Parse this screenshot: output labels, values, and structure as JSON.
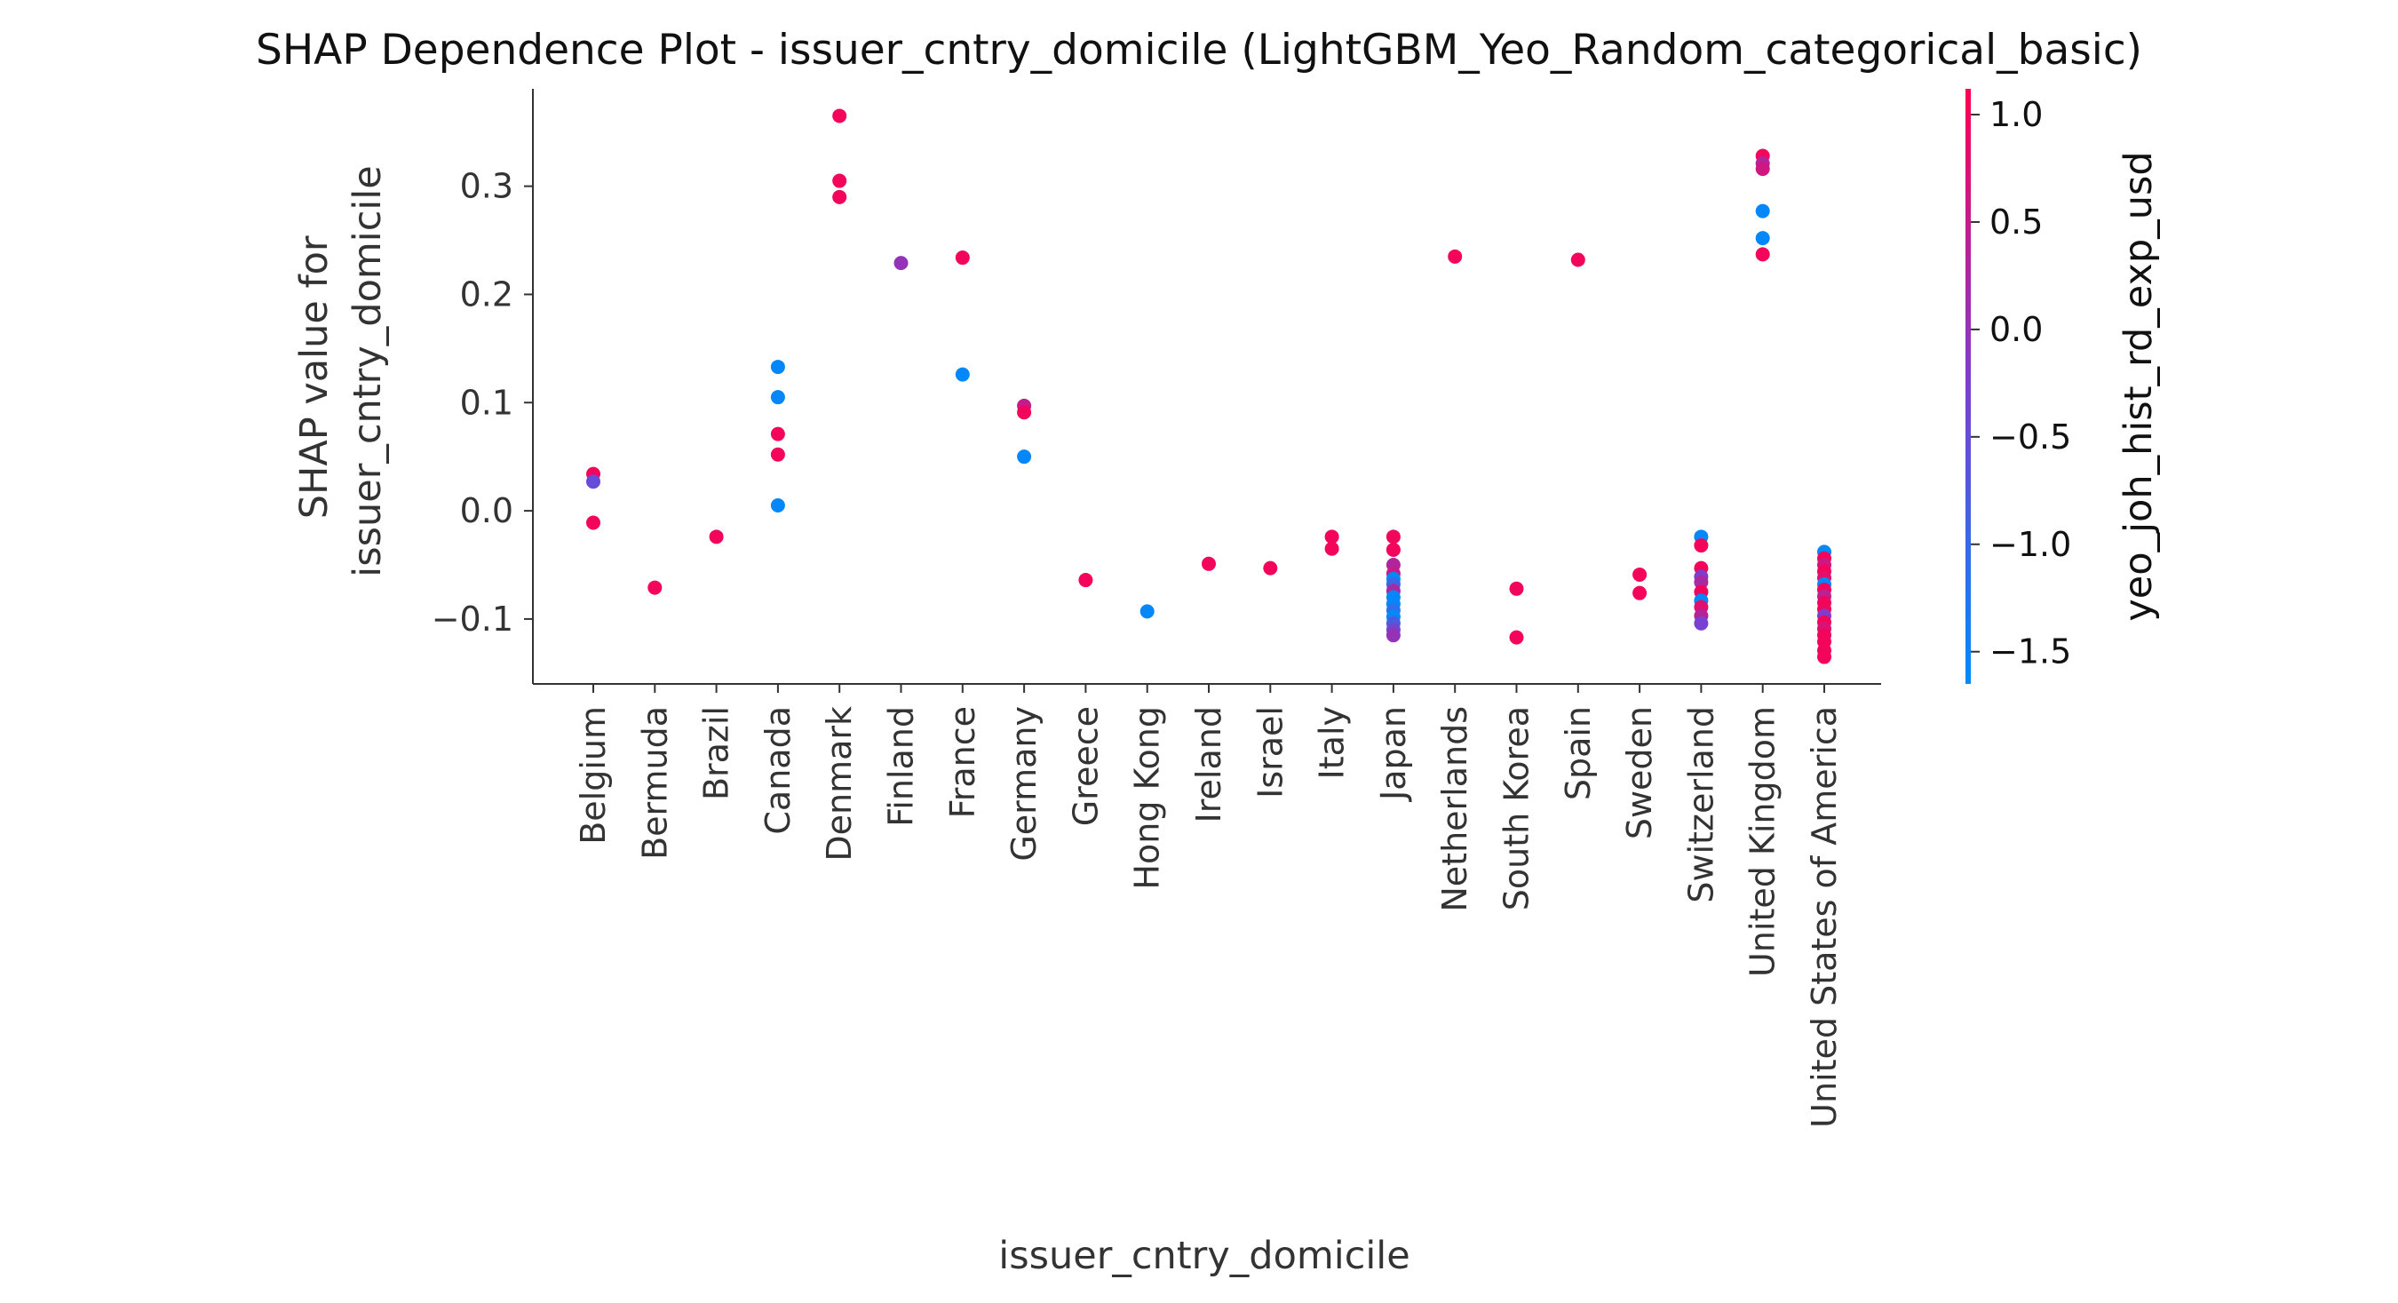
{
  "chart_data": {
    "type": "scatter",
    "title": "SHAP Dependence Plot - issuer_cntry_domicile (LightGBM_Yeo_Random_categorical_basic)",
    "xlabel": "issuer_cntry_domicile",
    "ylabel_lines": [
      "SHAP value for",
      "issuer_cntry_domicile"
    ],
    "categories": [
      "Belgium",
      "Bermuda",
      "Brazil",
      "Canada",
      "Denmark",
      "Finland",
      "France",
      "Germany",
      "Greece",
      "Hong Kong",
      "Ireland",
      "Israel",
      "Italy",
      "Japan",
      "Netherlands",
      "South Korea",
      "Spain",
      "Sweden",
      "Switzerland",
      "United Kingdom",
      "United States of America"
    ],
    "ylim": [
      -0.16,
      0.39
    ],
    "yticks": [
      -0.1,
      0.0,
      0.1,
      0.2,
      0.3
    ],
    "ytick_labels": [
      "−0.1",
      "0.0",
      "0.1",
      "0.2",
      "0.3"
    ],
    "grid": false,
    "colorbar": {
      "label": "yeo_joh_hist_rd_exp_usd",
      "range": [
        -1.65,
        1.12
      ],
      "ticks": [
        1.0,
        0.5,
        0.0,
        -0.5,
        -1.0,
        -1.5
      ],
      "tick_labels": [
        "1.0",
        "0.5",
        "0.0",
        "−0.5",
        "−1.0",
        "−1.5"
      ],
      "colors": [
        "#008bfb",
        "#7b3fd0",
        "#ff0051"
      ]
    },
    "points": [
      {
        "cat": "Belgium",
        "y": 0.034,
        "c": 1.0
      },
      {
        "cat": "Belgium",
        "y": 0.027,
        "c": -0.5
      },
      {
        "cat": "Belgium",
        "y": -0.011,
        "c": 1.0
      },
      {
        "cat": "Bermuda",
        "y": -0.071,
        "c": 1.0
      },
      {
        "cat": "Brazil",
        "y": -0.024,
        "c": 1.0
      },
      {
        "cat": "Canada",
        "y": 0.133,
        "c": -1.6
      },
      {
        "cat": "Canada",
        "y": 0.105,
        "c": -1.6
      },
      {
        "cat": "Canada",
        "y": 0.071,
        "c": 1.0
      },
      {
        "cat": "Canada",
        "y": 0.052,
        "c": 1.0
      },
      {
        "cat": "Canada",
        "y": 0.005,
        "c": -1.6
      },
      {
        "cat": "Denmark",
        "y": 0.365,
        "c": 1.0
      },
      {
        "cat": "Denmark",
        "y": 0.305,
        "c": 1.0
      },
      {
        "cat": "Denmark",
        "y": 0.29,
        "c": 1.0
      },
      {
        "cat": "Finland",
        "y": 0.229,
        "c": 0.0
      },
      {
        "cat": "France",
        "y": 0.234,
        "c": 1.0
      },
      {
        "cat": "France",
        "y": 0.126,
        "c": -1.6
      },
      {
        "cat": "Germany",
        "y": 0.097,
        "c": 0.5
      },
      {
        "cat": "Germany",
        "y": 0.091,
        "c": 1.0
      },
      {
        "cat": "Germany",
        "y": 0.05,
        "c": -1.6
      },
      {
        "cat": "Greece",
        "y": -0.064,
        "c": 1.0
      },
      {
        "cat": "Hong Kong",
        "y": -0.093,
        "c": -1.6
      },
      {
        "cat": "Ireland",
        "y": -0.049,
        "c": 1.0
      },
      {
        "cat": "Israel",
        "y": -0.053,
        "c": 1.0
      },
      {
        "cat": "Italy",
        "y": -0.024,
        "c": 1.0
      },
      {
        "cat": "Italy",
        "y": -0.035,
        "c": 1.0
      },
      {
        "cat": "Japan",
        "y": -0.024,
        "c": 1.0
      },
      {
        "cat": "Japan",
        "y": -0.036,
        "c": 1.0
      },
      {
        "cat": "Japan",
        "y": -0.05,
        "c": 0.3
      },
      {
        "cat": "Japan",
        "y": -0.058,
        "c": 0.5
      },
      {
        "cat": "Japan",
        "y": -0.063,
        "c": -1.6
      },
      {
        "cat": "Japan",
        "y": -0.068,
        "c": -1.0
      },
      {
        "cat": "Japan",
        "y": -0.074,
        "c": 0.2
      },
      {
        "cat": "Japan",
        "y": -0.08,
        "c": -1.6
      },
      {
        "cat": "Japan",
        "y": -0.086,
        "c": -1.6
      },
      {
        "cat": "Japan",
        "y": -0.092,
        "c": -1.2
      },
      {
        "cat": "Japan",
        "y": -0.098,
        "c": -1.6
      },
      {
        "cat": "Japan",
        "y": -0.104,
        "c": -0.8
      },
      {
        "cat": "Japan",
        "y": -0.11,
        "c": -0.4
      },
      {
        "cat": "Japan",
        "y": -0.115,
        "c": 0.0
      },
      {
        "cat": "Netherlands",
        "y": 0.235,
        "c": 1.0
      },
      {
        "cat": "South Korea",
        "y": -0.072,
        "c": 1.0
      },
      {
        "cat": "South Korea",
        "y": -0.117,
        "c": 1.0
      },
      {
        "cat": "Spain",
        "y": 0.232,
        "c": 1.0
      },
      {
        "cat": "Sweden",
        "y": -0.059,
        "c": 1.0
      },
      {
        "cat": "Sweden",
        "y": -0.076,
        "c": 1.0
      },
      {
        "cat": "Switzerland",
        "y": -0.024,
        "c": -1.6
      },
      {
        "cat": "Switzerland",
        "y": -0.032,
        "c": 1.0
      },
      {
        "cat": "Switzerland",
        "y": -0.053,
        "c": 1.0
      },
      {
        "cat": "Switzerland",
        "y": -0.061,
        "c": -0.2
      },
      {
        "cat": "Switzerland",
        "y": -0.066,
        "c": 0.2
      },
      {
        "cat": "Switzerland",
        "y": -0.075,
        "c": 1.0
      },
      {
        "cat": "Switzerland",
        "y": -0.083,
        "c": -1.6
      },
      {
        "cat": "Switzerland",
        "y": -0.089,
        "c": 0.8
      },
      {
        "cat": "Switzerland",
        "y": -0.097,
        "c": 0.4
      },
      {
        "cat": "Switzerland",
        "y": -0.104,
        "c": -0.3
      },
      {
        "cat": "United Kingdom",
        "y": 0.328,
        "c": 1.0
      },
      {
        "cat": "United Kingdom",
        "y": 0.321,
        "c": 0.3
      },
      {
        "cat": "United Kingdom",
        "y": 0.316,
        "c": 0.6
      },
      {
        "cat": "United Kingdom",
        "y": 0.277,
        "c": -1.6
      },
      {
        "cat": "United Kingdom",
        "y": 0.252,
        "c": -1.6
      },
      {
        "cat": "United Kingdom",
        "y": 0.237,
        "c": 1.0
      },
      {
        "cat": "United States of America",
        "y": -0.038,
        "c": -1.6
      },
      {
        "cat": "United States of America",
        "y": -0.044,
        "c": 1.0
      },
      {
        "cat": "United States of America",
        "y": -0.05,
        "c": 0.6
      },
      {
        "cat": "United States of America",
        "y": -0.056,
        "c": 1.0
      },
      {
        "cat": "United States of America",
        "y": -0.062,
        "c": 0.8
      },
      {
        "cat": "United States of America",
        "y": -0.068,
        "c": -1.6
      },
      {
        "cat": "United States of America",
        "y": -0.073,
        "c": 1.0
      },
      {
        "cat": "United States of America",
        "y": -0.079,
        "c": 0.4
      },
      {
        "cat": "United States of America",
        "y": -0.085,
        "c": 1.0
      },
      {
        "cat": "United States of America",
        "y": -0.091,
        "c": 1.0
      },
      {
        "cat": "United States of America",
        "y": -0.097,
        "c": -0.2
      },
      {
        "cat": "United States of America",
        "y": -0.103,
        "c": 1.0
      },
      {
        "cat": "United States of America",
        "y": -0.109,
        "c": 0.7
      },
      {
        "cat": "United States of America",
        "y": -0.115,
        "c": 1.0
      },
      {
        "cat": "United States of America",
        "y": -0.121,
        "c": 1.0
      },
      {
        "cat": "United States of America",
        "y": -0.129,
        "c": 1.0
      },
      {
        "cat": "United States of America",
        "y": -0.135,
        "c": 1.0
      }
    ]
  }
}
